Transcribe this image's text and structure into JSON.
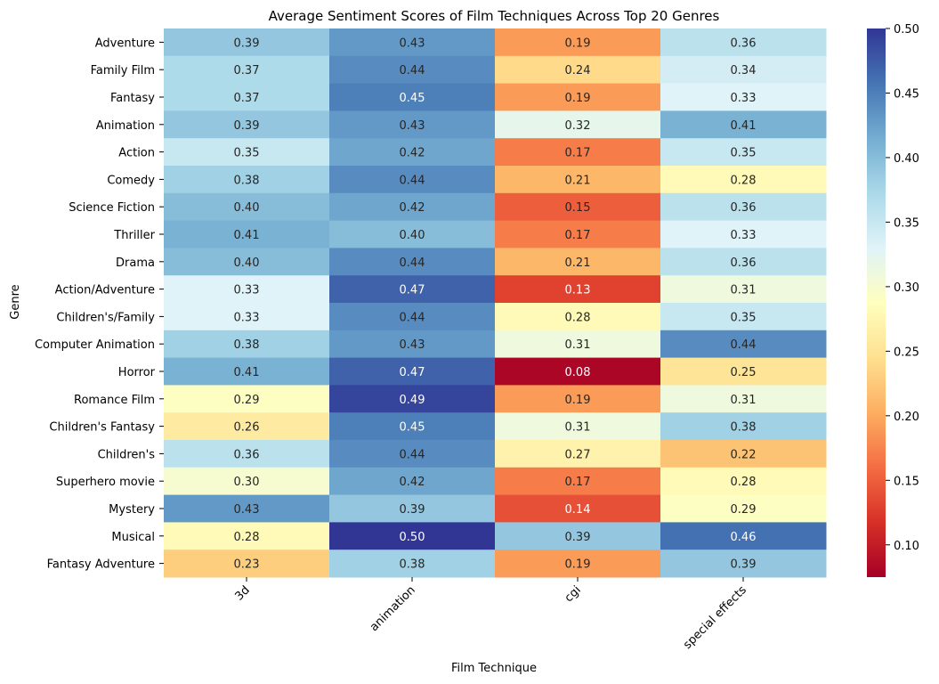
{
  "chart_data": {
    "type": "heatmap",
    "title": "Average Sentiment Scores of Film Techniques Across Top 20 Genres",
    "xlabel": "Film Technique",
    "ylabel": "Genre",
    "columns": [
      "3d",
      "animation",
      "cgi",
      "special effects"
    ],
    "rows": [
      "Adventure",
      "Family Film",
      "Fantasy",
      "Animation",
      "Action",
      "Comedy",
      "Science Fiction",
      "Thriller",
      "Drama",
      "Action/Adventure",
      "Children's/Family",
      "Computer Animation",
      "Horror",
      "Romance Film",
      "Children's Fantasy",
      "Children's",
      "Superhero movie",
      "Mystery",
      "Musical",
      "Fantasy Adventure"
    ],
    "values": [
      [
        0.39,
        0.43,
        0.19,
        0.36
      ],
      [
        0.37,
        0.44,
        0.24,
        0.34
      ],
      [
        0.37,
        0.45,
        0.19,
        0.33
      ],
      [
        0.39,
        0.43,
        0.32,
        0.41
      ],
      [
        0.35,
        0.42,
        0.17,
        0.35
      ],
      [
        0.38,
        0.44,
        0.21,
        0.28
      ],
      [
        0.4,
        0.42,
        0.15,
        0.36
      ],
      [
        0.41,
        0.4,
        0.17,
        0.33
      ],
      [
        0.4,
        0.44,
        0.21,
        0.36
      ],
      [
        0.33,
        0.47,
        0.13,
        0.31
      ],
      [
        0.33,
        0.44,
        0.28,
        0.35
      ],
      [
        0.38,
        0.43,
        0.31,
        0.44
      ],
      [
        0.41,
        0.47,
        0.08,
        0.25
      ],
      [
        0.29,
        0.49,
        0.19,
        0.31
      ],
      [
        0.26,
        0.45,
        0.31,
        0.38
      ],
      [
        0.36,
        0.44,
        0.27,
        0.22
      ],
      [
        0.3,
        0.42,
        0.17,
        0.28
      ],
      [
        0.43,
        0.39,
        0.14,
        0.29
      ],
      [
        0.28,
        0.5,
        0.39,
        0.46
      ],
      [
        0.23,
        0.38,
        0.19,
        0.39
      ]
    ],
    "colorbar": {
      "colormap": "RdYlBu",
      "range": [
        0.075,
        0.5
      ],
      "ticks": [
        "0.10",
        "0.15",
        "0.20",
        "0.25",
        "0.30",
        "0.35",
        "0.40",
        "0.45",
        "0.50"
      ]
    },
    "grid": false
  }
}
